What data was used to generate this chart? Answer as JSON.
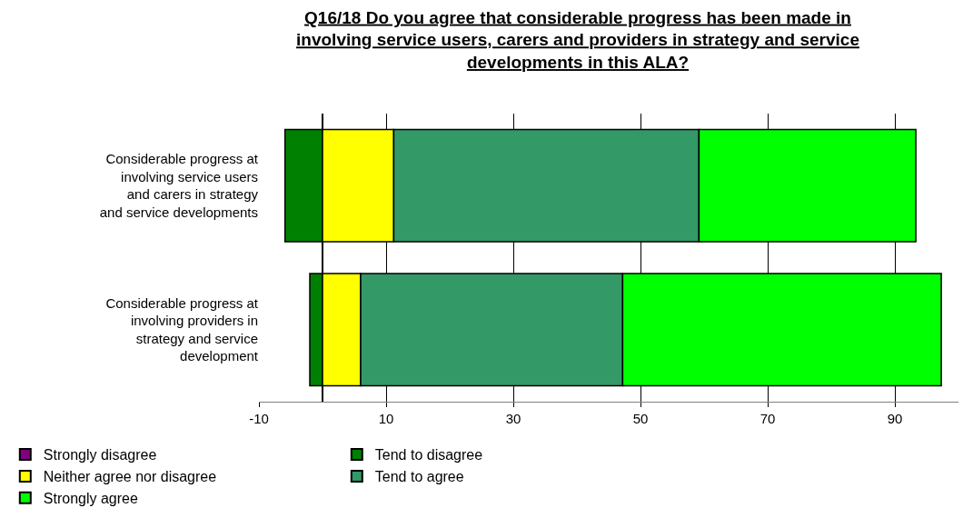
{
  "chart_data": {
    "type": "bar",
    "orientation": "horizontal",
    "stacked": true,
    "title": "Q16/18 Do you agree that considerable progress has been made in involving service users, carers and providers in strategy and service developments in this ALA?",
    "categories": [
      "Considerable progress at involving service users and carers in strategy and service developments",
      "Considerable progress at involving providers in strategy and service development"
    ],
    "series": [
      {
        "name": "Strongly disagree",
        "color": "#800080",
        "values": [
          0,
          0
        ]
      },
      {
        "name": "Tend to disagree",
        "color": "#008000",
        "values": [
          -5.9,
          -2.0
        ]
      },
      {
        "name": "Neither agree nor disagree",
        "color": "#ffff00",
        "values": [
          11.2,
          6.0
        ]
      },
      {
        "name": "Tend to agree",
        "color": "#339966",
        "values": [
          48.0,
          41.2
        ]
      },
      {
        "name": "Strongly agree",
        "color": "#00ff00",
        "values": [
          34.1,
          50.1
        ]
      }
    ],
    "xlim": [
      -10,
      100
    ],
    "xticks": [
      -10,
      10,
      30,
      50,
      70,
      90
    ],
    "grid": "x",
    "legend": "bottom"
  }
}
